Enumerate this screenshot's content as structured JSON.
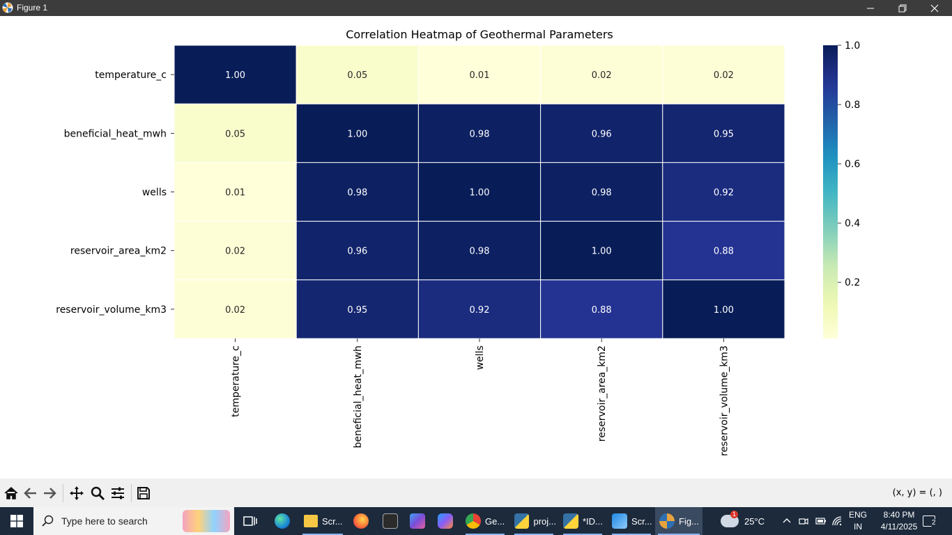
{
  "window": {
    "title": "Figure 1",
    "controls": {
      "minimize": "minimize",
      "restore": "restore",
      "close": "close"
    }
  },
  "chart_data": {
    "type": "heatmap",
    "title": "Correlation Heatmap of Geothermal Parameters",
    "row_labels": [
      "temperature_c",
      "beneficial_heat_mwh",
      "wells",
      "reservoir_area_km2",
      "reservoir_volume_km3"
    ],
    "col_labels": [
      "temperature_c",
      "beneficial_heat_mwh",
      "wells",
      "reservoir_area_km2",
      "reservoir_volume_km3"
    ],
    "values": [
      [
        1.0,
        0.05,
        0.01,
        0.02,
        0.02
      ],
      [
        0.05,
        1.0,
        0.98,
        0.96,
        0.95
      ],
      [
        0.01,
        0.98,
        1.0,
        0.98,
        0.92
      ],
      [
        0.02,
        0.96,
        0.98,
        1.0,
        0.88
      ],
      [
        0.02,
        0.95,
        0.92,
        0.88,
        1.0
      ]
    ],
    "annotation_format": "0.00",
    "colormap": "YlGnBu",
    "colorbar": {
      "min": 0.0,
      "max": 1.0,
      "ticks": [
        0.2,
        0.4,
        0.6,
        0.8,
        1.0
      ],
      "tick_labels": [
        "0.2",
        "0.4",
        "0.6",
        "0.8",
        "1.0"
      ]
    },
    "grid": false
  },
  "toolbar": {
    "buttons": [
      "home",
      "back",
      "forward",
      "pan",
      "zoom",
      "configure-subplots",
      "save"
    ],
    "coords_text": "(x, y) = (, )"
  },
  "taskbar": {
    "search_placeholder": "Type here to search",
    "apps": [
      {
        "name": "task-view",
        "label": ""
      },
      {
        "name": "edge",
        "label": ""
      },
      {
        "name": "file-explorer",
        "label": "Scr..."
      },
      {
        "name": "firefox",
        "label": ""
      },
      {
        "name": "clipchamp",
        "label": ""
      },
      {
        "name": "m365",
        "label": ""
      },
      {
        "name": "copilot",
        "label": ""
      },
      {
        "name": "chrome",
        "label": "Ge..."
      },
      {
        "name": "python-proj",
        "label": "proj..."
      },
      {
        "name": "idle",
        "label": "*ID..."
      },
      {
        "name": "snipping",
        "label": "Scr..."
      },
      {
        "name": "figure",
        "label": "Fig..."
      }
    ],
    "weather": {
      "temp": "25°C",
      "badge": "1"
    },
    "language": {
      "line1": "ENG",
      "line2": "IN"
    },
    "clock": {
      "time": "8:40 PM",
      "date": "4/11/2025"
    },
    "notifications": "2"
  }
}
